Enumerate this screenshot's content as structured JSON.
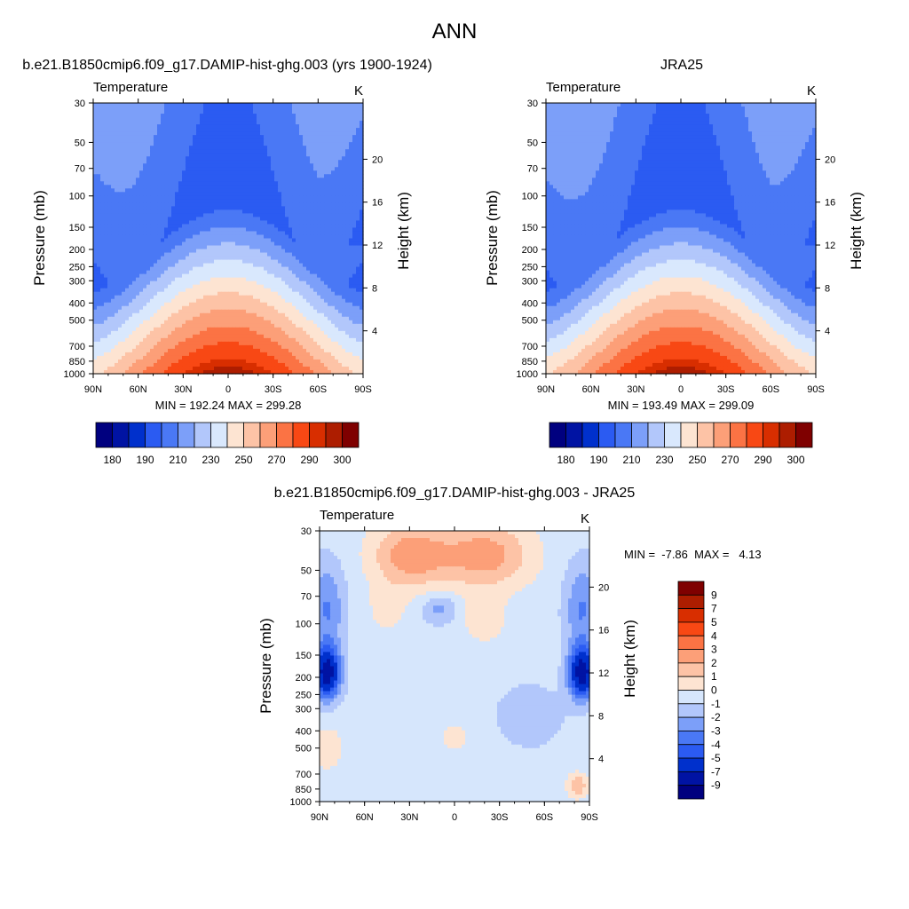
{
  "title": "ANN",
  "colors": {
    "abs_levels": [
      "#00007f",
      "#0013a3",
      "#0030cc",
      "#2b5bf2",
      "#4a78f5",
      "#7c9ff9",
      "#b2c7fb",
      "#d9e8fd",
      "#fde4d2",
      "#fdc3a6",
      "#fc9f78",
      "#fb7344",
      "#f84814",
      "#d82e00",
      "#ad1d00",
      "#7f0000"
    ],
    "diff_levels": [
      "#00007f",
      "#0013a3",
      "#0030cc",
      "#2b5bf2",
      "#4a78f5",
      "#7c9ff9",
      "#b2c7fb",
      "#d6e6fc",
      "#fde4d2",
      "#fdc3a6",
      "#fc9f78",
      "#fb7344",
      "#f84814",
      "#d82e00",
      "#ad1d00",
      "#7f0000"
    ]
  },
  "chart_data": [
    {
      "type": "contour",
      "title": "b.e21.B1850cmip6.f09_g17.DAMIP-hist-ghg.003 (yrs 1900-1924)",
      "subtitle_left": "Temperature",
      "subtitle_right": "K",
      "ylabel": "Pressure (mb)",
      "ylabel_right": "Height (km)",
      "x_ticks": [
        "90N",
        "60N",
        "30N",
        "0",
        "30S",
        "60S",
        "90S"
      ],
      "y_ticks": [
        "30",
        "50",
        "70",
        "100",
        "150",
        "200",
        "250",
        "300",
        "400",
        "500",
        "700",
        "850",
        "1000"
      ],
      "y_right_ticks": [
        "4",
        "8",
        "12",
        "16",
        "20"
      ],
      "stats": "MIN = 192.24  MAX = 299.28",
      "colorbar_labels": [
        "180",
        "190",
        "210",
        "230",
        "250",
        "270",
        "290",
        "300"
      ],
      "model": {
        "min": 192.24,
        "max": 299.28,
        "tropopause_min": 193,
        "surface_equator": 299,
        "polar_surface": 249
      }
    },
    {
      "type": "contour",
      "title": "JRA25",
      "subtitle_left": "Temperature",
      "subtitle_right": "K",
      "ylabel": "Pressure (mb)",
      "ylabel_right": "Height (km)",
      "x_ticks": [
        "90N",
        "60N",
        "30N",
        "0",
        "30S",
        "60S",
        "90S"
      ],
      "y_ticks": [
        "30",
        "50",
        "70",
        "100",
        "150",
        "200",
        "250",
        "300",
        "400",
        "500",
        "700",
        "850",
        "1000"
      ],
      "y_right_ticks": [
        "4",
        "8",
        "12",
        "16",
        "20"
      ],
      "stats": "MIN = 193.49  MAX = 299.09",
      "colorbar_labels": [
        "180",
        "190",
        "210",
        "230",
        "250",
        "270",
        "290",
        "300"
      ],
      "model": {
        "min": 193.49,
        "max": 299.09,
        "tropopause_min": 194,
        "surface_equator": 299,
        "polar_surface": 250
      }
    },
    {
      "type": "contour",
      "title": "b.e21.B1850cmip6.f09_g17.DAMIP-hist-ghg.003 - JRA25",
      "subtitle_left": "Temperature",
      "subtitle_right": "K",
      "ylabel": "Pressure (mb)",
      "ylabel_right": "Height (km)",
      "x_ticks": [
        "90N",
        "60N",
        "30N",
        "0",
        "30S",
        "60S",
        "90S"
      ],
      "y_ticks": [
        "30",
        "50",
        "70",
        "100",
        "150",
        "200",
        "250",
        "300",
        "400",
        "500",
        "700",
        "850",
        "1000"
      ],
      "y_right_ticks": [
        "4",
        "8",
        "12",
        "16",
        "20"
      ],
      "stats": "MIN =  -7.86  MAX =   4.13",
      "colorbar_labels": [
        "9",
        "7",
        "5",
        "4",
        "3",
        "2",
        "1",
        "0",
        "-1",
        "-2",
        "-3",
        "-4",
        "-5",
        "-7",
        "-9"
      ],
      "levels": [
        -9,
        -7,
        -5,
        -4,
        -3,
        -2,
        -1,
        0,
        1,
        2,
        3,
        4,
        5,
        7,
        9
      ],
      "model": {
        "min": -7.86,
        "max": 4.13
      }
    }
  ]
}
